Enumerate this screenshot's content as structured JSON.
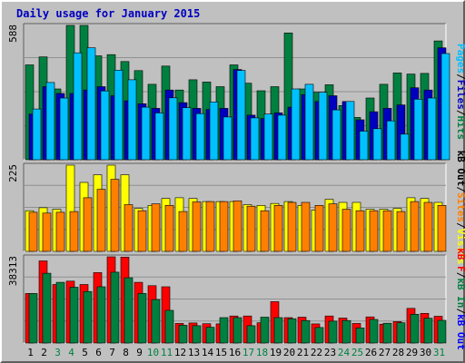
{
  "chart_data": {
    "type": "bar",
    "title": "Daily usage for January 2015",
    "categories": [
      "1",
      "2",
      "3",
      "4",
      "5",
      "6",
      "7",
      "8",
      "9",
      "10",
      "11",
      "12",
      "13",
      "14",
      "15",
      "16",
      "17",
      "18",
      "19",
      "20",
      "21",
      "22",
      "23",
      "24",
      "25",
      "26",
      "27",
      "28",
      "29",
      "30",
      "31"
    ],
    "weekend_days": [
      "3",
      "4",
      "10",
      "11",
      "17",
      "18",
      "24",
      "25",
      "31"
    ],
    "panels": [
      {
        "max_label": "588",
        "ymax": 588,
        "right_label": [
          "Pages",
          "Files",
          "Hits"
        ],
        "series": [
          {
            "name": "Hits",
            "color": "#008040",
            "values": [
              415,
              450,
              310,
              588,
              588,
              455,
              460,
              430,
              390,
              330,
              410,
              305,
              350,
              340,
              320,
              415,
              335,
              302,
              320,
              555,
              310,
              295,
              328,
              237,
              185,
              270,
              330,
              380,
              375,
              378,
              520
            ]
          },
          {
            "name": "Files",
            "color": "#0000c0",
            "values": [
              200,
              320,
              290,
              290,
              305,
              320,
              280,
              258,
              245,
              225,
              305,
              250,
              225,
              220,
              225,
              395,
              195,
              180,
              205,
              230,
              285,
              255,
              280,
              255,
              175,
              210,
              225,
              240,
              315,
              305,
              490
            ]
          },
          {
            "name": "Pages",
            "color": "#00c0ff",
            "values": [
              222,
              338,
              270,
              468,
              490,
              301,
              392,
              350,
              230,
              205,
              271,
              228,
              202,
              253,
              187,
              391,
              183,
              200,
              195,
              310,
              330,
              295,
              218,
              255,
              125,
              136,
              170,
              112,
              265,
              270,
              465
            ]
          }
        ]
      },
      {
        "max_label": "225",
        "ymax": 225,
        "right_label": [
          "kB Out",
          "Sites",
          "Visits"
        ],
        "series": [
          {
            "name": "Visits",
            "color": "#ffff00",
            "values": [
              106,
              114,
              110,
              225,
              180,
              200,
              225,
              200,
              112,
              120,
              138,
              140,
              138,
              130,
              130,
              130,
              122,
              120,
              125,
              130,
              120,
              108,
              136,
              128,
              128,
              110,
              110,
              112,
              140,
              138,
              128
            ]
          },
          {
            "name": "Sites",
            "color": "#ff8000",
            "values": [
              102,
              100,
              102,
              104,
              140,
              162,
              188,
              122,
              106,
              124,
              120,
              104,
              129,
              130,
              130,
              132,
              118,
              106,
              120,
              128,
              128,
              120,
              124,
              110,
              106,
              106,
              106,
              104,
              130,
              128,
              120
            ]
          }
        ]
      },
      {
        "max_label": "38313",
        "ymax": 38313,
        "right_label": [
          "kB F",
          "kB In",
          "kB Out"
        ],
        "series": [
          {
            "name": "kB F",
            "color": "#ff0000",
            "values": [
              22000,
              36500,
              26000,
              27500,
              26000,
              31300,
              38313,
              38200,
              27000,
              25500,
              25000,
              8700,
              8900,
              8600,
              8500,
              12000,
              12000,
              9000,
              18400,
              11300,
              11500,
              8500,
              12000,
              11100,
              8700,
              11600,
              8400,
              9500,
              15400,
              13200,
              11900
            ]
          },
          {
            "name": "kB In",
            "color": "#008040",
            "values": [
              22000,
              31000,
              27000,
              24800,
              22900,
              25000,
              31500,
              29000,
              22000,
              19300,
              14500,
              7900,
              7700,
              7000,
              11300,
              11300,
              7700,
              11500,
              11300,
              10800,
              10000,
              6900,
              9700,
              10000,
              6700,
              10500,
              8800,
              9000,
              12800,
              11000,
              10100
            ]
          },
          {
            "name": "kB Out",
            "color": "#0000ff",
            "values": [
              0,
              0,
              0,
              0,
              0,
              0,
              0,
              0,
              0,
              0,
              0,
              0,
              0,
              0,
              0,
              0,
              0,
              0,
              0,
              0,
              0,
              0,
              0,
              0,
              0,
              0,
              0,
              0,
              0,
              0,
              0
            ]
          }
        ]
      }
    ]
  },
  "colors": {
    "background": "#c0c0c0",
    "plot_bg": "#c0c0c0",
    "grid": "#909090",
    "title": "#0000c0",
    "weekday_label": "#000000",
    "weekend_label": "#008040",
    "bar_outline": "#000000"
  }
}
